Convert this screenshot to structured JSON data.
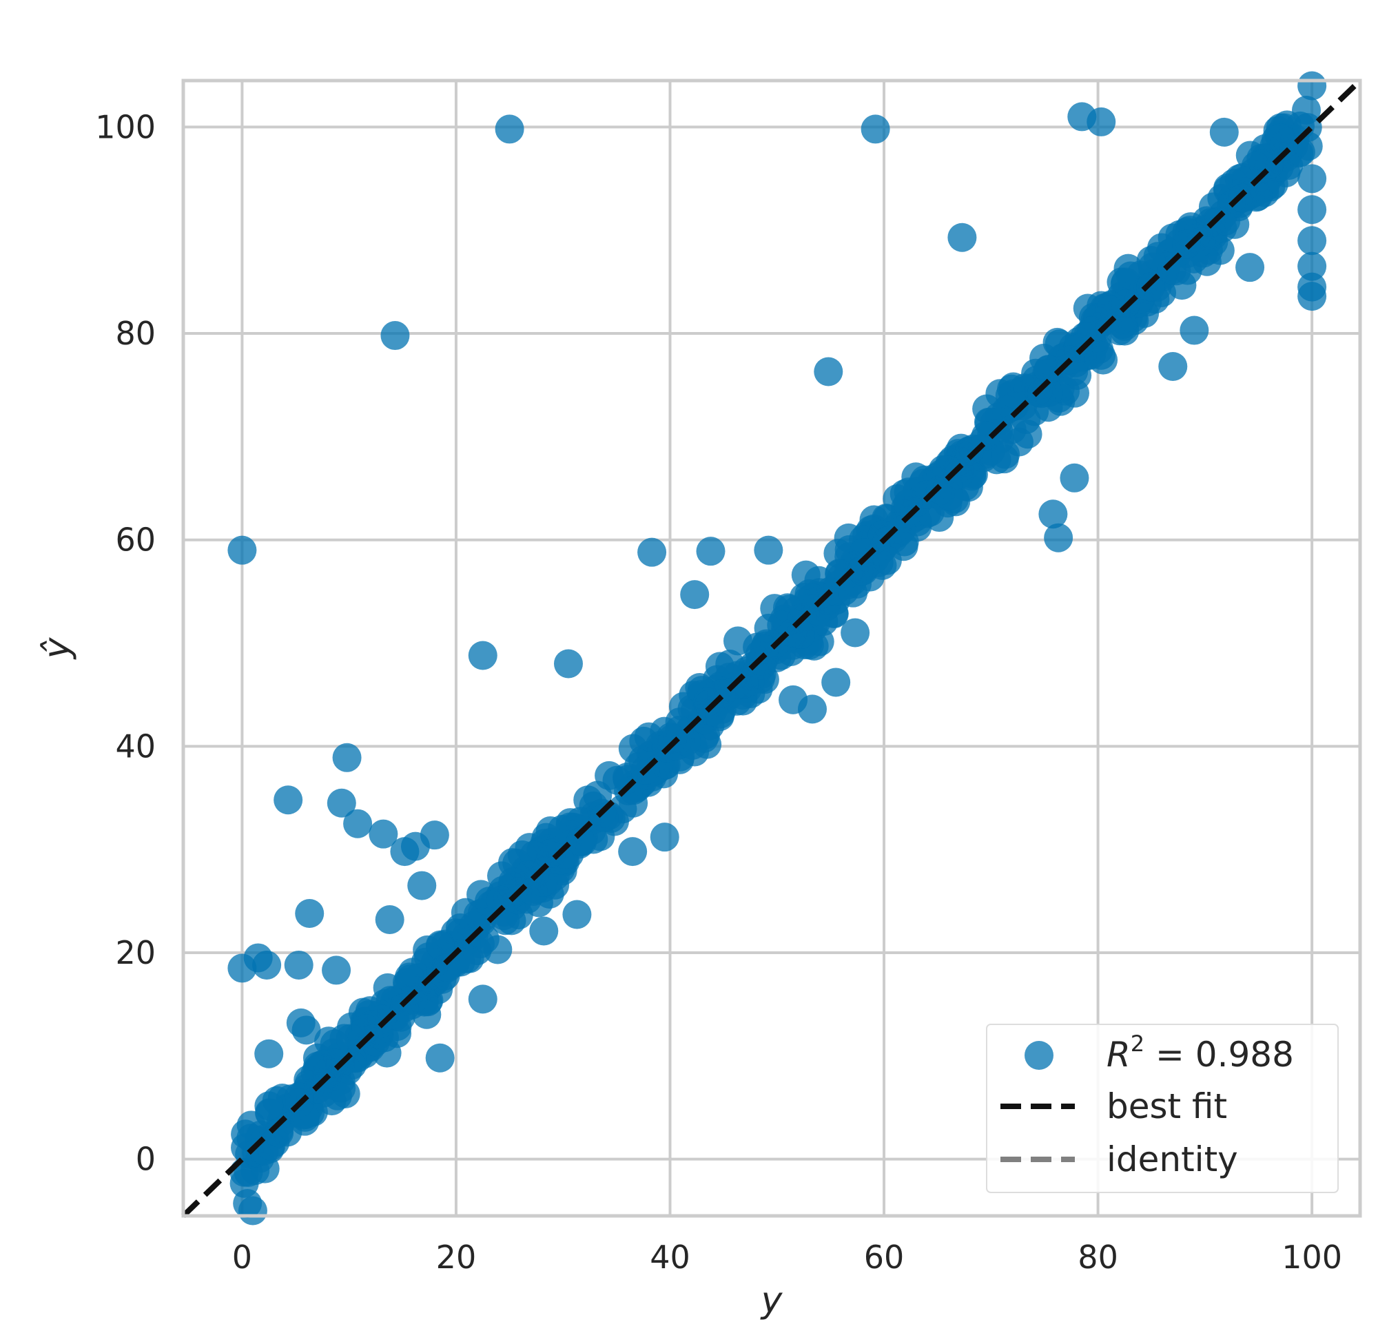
{
  "chart_data": {
    "type": "scatter",
    "title": "",
    "xlabel": "y",
    "ylabel": "ŷ",
    "xlim": [
      -5.5,
      104.5
    ],
    "ylim": [
      -5.5,
      104.5
    ],
    "xticks": [
      0,
      20,
      40,
      60,
      80,
      100
    ],
    "yticks": [
      0,
      20,
      40,
      60,
      80,
      100
    ],
    "grid": true,
    "colors": {
      "points": "#0173b2",
      "best_fit": "#111111",
      "identity": "#808080",
      "grid": "#cccccc"
    },
    "legend": {
      "placement": "bottom-right",
      "entries": [
        {
          "key": "points",
          "label_prefix": "R",
          "label_sup": "2",
          "label_suffix": " = 0.988"
        },
        {
          "key": "best_fit",
          "label": "best fit"
        },
        {
          "key": "identity",
          "label": "identity"
        }
      ]
    },
    "best_fit": {
      "slope": 1.0,
      "intercept": 0.0
    },
    "identity": {
      "slope": 1.0,
      "intercept": 0.0
    },
    "band": {
      "x_min": 0,
      "x_max": 100,
      "half_width": 3.2,
      "count": 900
    },
    "series": [
      {
        "name": "",
        "points": [
          [
            0,
            59
          ],
          [
            0,
            18.5
          ],
          [
            1.5,
            19.5
          ],
          [
            2.3,
            18.8
          ],
          [
            5.3,
            18.8
          ],
          [
            2.5,
            10.2
          ],
          [
            4.3,
            34.8
          ],
          [
            9.3,
            34.5
          ],
          [
            9.8,
            38.9
          ],
          [
            10.8,
            32.5
          ],
          [
            13.2,
            31.5
          ],
          [
            15.2,
            29.8
          ],
          [
            16.2,
            30.3
          ],
          [
            18,
            31.4
          ],
          [
            16.8,
            26.5
          ],
          [
            6.3,
            23.8
          ],
          [
            13.8,
            23.2
          ],
          [
            8.8,
            18.3
          ],
          [
            5.5,
            13.2
          ],
          [
            6,
            12.5
          ],
          [
            18.5,
            9.8
          ],
          [
            14.3,
            79.8
          ],
          [
            25,
            99.8
          ],
          [
            22.5,
            48.8
          ],
          [
            30.5,
            48
          ],
          [
            38.3,
            58.8
          ],
          [
            43.8,
            58.9
          ],
          [
            42.3,
            54.7
          ],
          [
            49.2,
            59
          ],
          [
            54.8,
            76.3
          ],
          [
            55.5,
            46.2
          ],
          [
            51.5,
            44.5
          ],
          [
            53.3,
            43.6
          ],
          [
            59.2,
            99.8
          ],
          [
            67.3,
            89.3
          ],
          [
            78.5,
            101
          ],
          [
            80.3,
            100.5
          ],
          [
            76.3,
            60.2
          ],
          [
            75.8,
            62.5
          ],
          [
            77.8,
            66
          ],
          [
            87,
            76.8
          ],
          [
            89,
            80.3
          ],
          [
            94.2,
            86.4
          ],
          [
            91.8,
            99.5
          ],
          [
            100,
            104
          ],
          [
            100,
            84.5
          ],
          [
            100,
            83.6
          ],
          [
            100,
            86.5
          ],
          [
            100,
            89
          ],
          [
            100,
            92
          ],
          [
            100,
            95
          ],
          [
            22.5,
            15.5
          ],
          [
            28.2,
            22.1
          ],
          [
            31.3,
            23.7
          ],
          [
            36.5,
            29.8
          ],
          [
            39.5,
            31.2
          ],
          [
            0.5,
            -4.3
          ],
          [
            1,
            -5
          ],
          [
            57.3,
            51
          ]
        ]
      }
    ]
  }
}
